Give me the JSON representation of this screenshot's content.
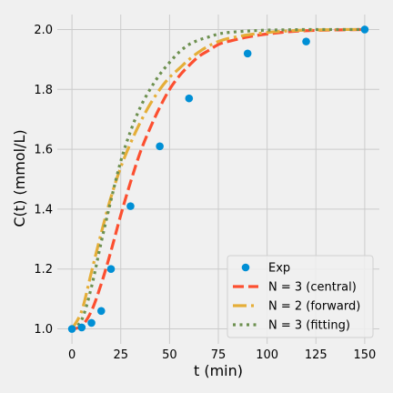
{
  "colors": {
    "background": "#f0f0f0",
    "grid": "#cbcbcb",
    "exp": "#008fd5",
    "central": "#fc4f30",
    "forward": "#e5ae38",
    "fitting": "#6d904f"
  },
  "chart_data": {
    "type": "line",
    "title": "",
    "xlabel": "t (min)",
    "ylabel": "C(t) (mmol/L)",
    "xlim": [
      -7.5,
      157.5
    ],
    "ylim": [
      0.95,
      2.05
    ],
    "xticks": [
      0,
      25,
      50,
      75,
      100,
      125,
      150
    ],
    "yticks": [
      1.0,
      1.2,
      1.4,
      1.6,
      1.8,
      2.0
    ],
    "xtick_labels": [
      "0",
      "25",
      "50",
      "75",
      "100",
      "125",
      "150"
    ],
    "ytick_labels": [
      "1.0",
      "1.2",
      "1.4",
      "1.6",
      "1.8",
      "2.0"
    ],
    "grid": true,
    "legend_position": "lower-right",
    "series": [
      {
        "name": "Exp",
        "kind": "scatter",
        "color": "#008fd5",
        "x": [
          0,
          5,
          10,
          15,
          20,
          30,
          45,
          60,
          90,
          120,
          150
        ],
        "y": [
          1.0,
          1.005,
          1.02,
          1.06,
          1.2,
          1.41,
          1.61,
          1.77,
          1.92,
          1.96,
          2.0
        ]
      },
      {
        "name": "N = 3 (central)",
        "kind": "line",
        "style": "dashed",
        "color": "#fc4f30",
        "x": [
          0,
          5,
          10,
          15,
          20,
          25,
          30,
          35,
          40,
          45,
          50,
          55,
          60,
          65,
          70,
          75,
          80,
          90,
          100,
          110,
          120,
          130,
          140,
          150
        ],
        "y": [
          1.0,
          1.01,
          1.06,
          1.15,
          1.26,
          1.38,
          1.49,
          1.59,
          1.67,
          1.74,
          1.8,
          1.845,
          1.88,
          1.91,
          1.93,
          1.95,
          1.96,
          1.975,
          1.985,
          1.992,
          1.996,
          1.998,
          1.999,
          2.0
        ]
      },
      {
        "name": "N = 2 (forward)",
        "kind": "line",
        "style": "dashdot",
        "color": "#e5ae38",
        "x": [
          0,
          5,
          10,
          15,
          20,
          25,
          30,
          35,
          40,
          45,
          50,
          55,
          60,
          65,
          70,
          75,
          80,
          90,
          100,
          110,
          120,
          130,
          140,
          150
        ],
        "y": [
          1.0,
          1.06,
          1.19,
          1.32,
          1.44,
          1.54,
          1.62,
          1.69,
          1.75,
          1.8,
          1.84,
          1.87,
          1.9,
          1.925,
          1.945,
          1.96,
          1.97,
          1.982,
          1.99,
          1.995,
          1.998,
          1.999,
          2.0,
          2.0
        ]
      },
      {
        "name": "N = 3 (fitting)",
        "kind": "line",
        "style": "dotted",
        "color": "#6d904f",
        "x": [
          0,
          5,
          10,
          15,
          20,
          25,
          30,
          35,
          40,
          45,
          50,
          55,
          60,
          65,
          70,
          75,
          80,
          90,
          100,
          110,
          120,
          130,
          140,
          150
        ],
        "y": [
          1.0,
          1.03,
          1.14,
          1.29,
          1.43,
          1.56,
          1.66,
          1.74,
          1.8,
          1.85,
          1.89,
          1.925,
          1.95,
          1.965,
          1.975,
          1.985,
          1.99,
          1.995,
          1.998,
          1.999,
          2.0,
          2.0,
          2.0,
          2.0
        ]
      }
    ]
  }
}
